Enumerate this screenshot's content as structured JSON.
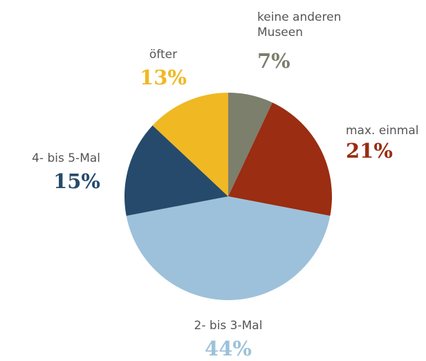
{
  "chart_data": {
    "type": "pie",
    "categories": [
      "keine anderen Museen",
      "max. einmal",
      "2- bis 3-Mal",
      "4- bis 5-Mal",
      "öfter"
    ],
    "values": [
      7,
      21,
      44,
      15,
      13
    ],
    "value_labels": [
      "7%",
      "21%",
      "44%",
      "15%",
      "13%"
    ],
    "colors": [
      "#7b7f6c",
      "#9a2d12",
      "#9dc1da",
      "#264a6b",
      "#f0b823"
    ]
  }
}
